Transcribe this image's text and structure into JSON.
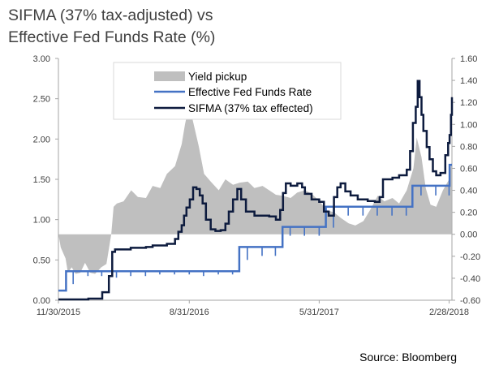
{
  "title_line1": "SIFMA (37% tax-adjusted) vs",
  "title_line2": "Effective Fed Funds Rate (%)",
  "source": "Source: Bloomberg",
  "colors": {
    "yield_pickup": "#bfbfbf",
    "fed_funds": "#4472c4",
    "sifma": "#0d1b3e",
    "axis": "#a6a6a6"
  },
  "chart_data": {
    "type": "line",
    "title": "SIFMA (37% tax-adjusted) vs Effective Fed Funds Rate (%)",
    "x_tick_labels": [
      "11/30/2015",
      "8/31/2016",
      "5/31/2017",
      "2/28/2018"
    ],
    "x_tick_dates": [
      "2015-11-30",
      "2016-08-31",
      "2017-05-31",
      "2018-02-28"
    ],
    "x_range": [
      "2015-11-30",
      "2018-03-06"
    ],
    "left_axis": {
      "ticks": [
        "0.00",
        "0.50",
        "1.00",
        "1.50",
        "2.00",
        "2.50",
        "3.00"
      ],
      "ylim": [
        0,
        3
      ]
    },
    "right_axis": {
      "ticks": [
        "-0.60",
        "-0.40",
        "-0.20",
        "0.00",
        "0.20",
        "0.40",
        "0.60",
        "0.80",
        "1.00",
        "1.20",
        "1.40",
        "1.60"
      ],
      "ylim": [
        -0.6,
        1.6
      ]
    },
    "legend": {
      "entries": [
        "Yield pickup",
        "Effective Fed Funds Rate",
        "SIFMA (37% tax effected)"
      ],
      "placement": "top-center"
    },
    "series": [
      {
        "name": "Yield pickup",
        "kind": "area",
        "axis": "right",
        "points": [
          [
            "2015-11-30",
            0.0
          ],
          [
            "2015-12-05",
            -0.12
          ],
          [
            "2015-12-15",
            -0.22
          ],
          [
            "2015-12-20",
            -0.35
          ],
          [
            "2015-12-28",
            -0.3
          ],
          [
            "2016-01-05",
            -0.36
          ],
          [
            "2016-01-15",
            -0.35
          ],
          [
            "2016-01-25",
            -0.26
          ],
          [
            "2016-02-05",
            -0.35
          ],
          [
            "2016-02-15",
            -0.36
          ],
          [
            "2016-02-28",
            -0.3
          ],
          [
            "2016-03-10",
            -0.27
          ],
          [
            "2016-03-20",
            0.0
          ],
          [
            "2016-03-25",
            0.25
          ],
          [
            "2016-04-01",
            0.28
          ],
          [
            "2016-04-15",
            0.3
          ],
          [
            "2016-05-01",
            0.4
          ],
          [
            "2016-05-15",
            0.34
          ],
          [
            "2016-06-01",
            0.33
          ],
          [
            "2016-06-15",
            0.44
          ],
          [
            "2016-07-01",
            0.42
          ],
          [
            "2016-07-15",
            0.55
          ],
          [
            "2016-08-01",
            0.62
          ],
          [
            "2016-08-15",
            0.82
          ],
          [
            "2016-08-22",
            1.0
          ],
          [
            "2016-08-28",
            1.12
          ],
          [
            "2016-09-05",
            1.08
          ],
          [
            "2016-09-12",
            0.95
          ],
          [
            "2016-09-20",
            0.8
          ],
          [
            "2016-10-01",
            0.55
          ],
          [
            "2016-10-15",
            0.48
          ],
          [
            "2016-11-01",
            0.4
          ],
          [
            "2016-11-15",
            0.5
          ],
          [
            "2016-12-01",
            0.45
          ],
          [
            "2016-12-15",
            0.47
          ],
          [
            "2017-01-01",
            0.48
          ],
          [
            "2017-01-15",
            0.42
          ],
          [
            "2017-02-01",
            0.44
          ],
          [
            "2017-02-15",
            0.4
          ],
          [
            "2017-03-01",
            0.36
          ],
          [
            "2017-03-15",
            0.35
          ],
          [
            "2017-04-01",
            0.33
          ],
          [
            "2017-04-15",
            0.38
          ],
          [
            "2017-05-01",
            0.4
          ],
          [
            "2017-05-15",
            0.37
          ],
          [
            "2017-06-01",
            0.3
          ],
          [
            "2017-06-15",
            0.22
          ],
          [
            "2017-07-01",
            0.2
          ],
          [
            "2017-07-15",
            0.15
          ],
          [
            "2017-08-01",
            0.1
          ],
          [
            "2017-08-15",
            0.08
          ],
          [
            "2017-09-01",
            0.12
          ],
          [
            "2017-09-15",
            0.22
          ],
          [
            "2017-10-01",
            0.35
          ],
          [
            "2017-10-15",
            0.3
          ],
          [
            "2017-11-01",
            0.33
          ],
          [
            "2017-11-15",
            0.28
          ],
          [
            "2017-12-01",
            0.4
          ],
          [
            "2017-12-15",
            0.6
          ],
          [
            "2017-12-22",
            0.88
          ],
          [
            "2018-01-01",
            0.7
          ],
          [
            "2018-01-10",
            0.42
          ],
          [
            "2018-01-20",
            0.27
          ],
          [
            "2018-02-01",
            0.25
          ],
          [
            "2018-02-15",
            0.4
          ],
          [
            "2018-02-28",
            0.5
          ],
          [
            "2018-03-05",
            0.65
          ]
        ]
      },
      {
        "name": "Effective Fed Funds Rate",
        "kind": "step",
        "axis": "left",
        "points": [
          [
            "2015-11-30",
            0.12
          ],
          [
            "2015-12-16",
            0.36
          ],
          [
            "2016-12-14",
            0.66
          ],
          [
            "2017-03-15",
            0.91
          ],
          [
            "2017-06-14",
            1.16
          ],
          [
            "2017-12-13",
            1.42
          ],
          [
            "2018-03-01",
            1.68
          ],
          [
            "2018-03-06",
            1.68
          ]
        ],
        "dips": [
          [
            "2015-12-31",
            0.2
          ],
          [
            "2016-01-31",
            0.3
          ],
          [
            "2016-02-29",
            0.3
          ],
          [
            "2016-03-31",
            0.28
          ],
          [
            "2016-04-30",
            0.3
          ],
          [
            "2016-05-31",
            0.3
          ],
          [
            "2016-06-30",
            0.32
          ],
          [
            "2016-07-31",
            0.32
          ],
          [
            "2016-08-31",
            0.32
          ],
          [
            "2016-09-30",
            0.3
          ],
          [
            "2016-10-31",
            0.32
          ],
          [
            "2016-11-30",
            0.32
          ],
          [
            "2016-12-31",
            0.5
          ],
          [
            "2017-01-31",
            0.55
          ],
          [
            "2017-02-28",
            0.55
          ],
          [
            "2017-03-31",
            0.8
          ],
          [
            "2017-04-30",
            0.8
          ],
          [
            "2017-05-31",
            0.8
          ],
          [
            "2017-06-30",
            0.9
          ],
          [
            "2017-07-31",
            1.05
          ],
          [
            "2017-08-31",
            1.05
          ],
          [
            "2017-09-30",
            1.05
          ],
          [
            "2017-10-31",
            1.05
          ],
          [
            "2017-11-30",
            1.05
          ],
          [
            "2017-12-31",
            1.3
          ],
          [
            "2018-01-31",
            1.3
          ],
          [
            "2018-02-28",
            1.3
          ]
        ]
      },
      {
        "name": "SIFMA (37% tax effected)",
        "kind": "step",
        "axis": "left",
        "points": [
          [
            "2015-11-30",
            0.01
          ],
          [
            "2016-02-01",
            0.02
          ],
          [
            "2016-03-01",
            0.1
          ],
          [
            "2016-03-15",
            0.3
          ],
          [
            "2016-03-22",
            0.6
          ],
          [
            "2016-03-28",
            0.63
          ],
          [
            "2016-04-30",
            0.65
          ],
          [
            "2016-06-01",
            0.66
          ],
          [
            "2016-06-15",
            0.68
          ],
          [
            "2016-07-15",
            0.7
          ],
          [
            "2016-08-01",
            0.76
          ],
          [
            "2016-08-08",
            0.85
          ],
          [
            "2016-08-15",
            0.93
          ],
          [
            "2016-08-20",
            1.05
          ],
          [
            "2016-08-25",
            1.15
          ],
          [
            "2016-09-01",
            1.25
          ],
          [
            "2016-09-08",
            1.4
          ],
          [
            "2016-09-15",
            1.38
          ],
          [
            "2016-09-22",
            1.3
          ],
          [
            "2016-09-28",
            1.2
          ],
          [
            "2016-10-05",
            1.0
          ],
          [
            "2016-10-15",
            0.88
          ],
          [
            "2016-10-25",
            0.86
          ],
          [
            "2016-11-05",
            0.87
          ],
          [
            "2016-11-15",
            0.95
          ],
          [
            "2016-11-22",
            1.1
          ],
          [
            "2016-12-01",
            1.25
          ],
          [
            "2016-12-10",
            1.38
          ],
          [
            "2016-12-18",
            1.25
          ],
          [
            "2016-12-28",
            1.1
          ],
          [
            "2017-01-15",
            1.05
          ],
          [
            "2017-02-01",
            1.05
          ],
          [
            "2017-02-15",
            1.04
          ],
          [
            "2017-03-01",
            1.0
          ],
          [
            "2017-03-10",
            1.12
          ],
          [
            "2017-03-16",
            1.33
          ],
          [
            "2017-03-22",
            1.45
          ],
          [
            "2017-04-01",
            1.42
          ],
          [
            "2017-04-15",
            1.45
          ],
          [
            "2017-04-25",
            1.4
          ],
          [
            "2017-05-01",
            1.32
          ],
          [
            "2017-05-15",
            1.25
          ],
          [
            "2017-05-31",
            1.22
          ],
          [
            "2017-06-10",
            1.1
          ],
          [
            "2017-06-20",
            1.05
          ],
          [
            "2017-07-01",
            1.28
          ],
          [
            "2017-07-08",
            1.4
          ],
          [
            "2017-07-15",
            1.45
          ],
          [
            "2017-07-25",
            1.35
          ],
          [
            "2017-08-05",
            1.3
          ],
          [
            "2017-08-20",
            1.25
          ],
          [
            "2017-09-10",
            1.23
          ],
          [
            "2017-09-25",
            1.22
          ],
          [
            "2017-10-05",
            1.28
          ],
          [
            "2017-10-12",
            1.5
          ],
          [
            "2017-10-20",
            1.5
          ],
          [
            "2017-11-01",
            1.52
          ],
          [
            "2017-11-15",
            1.55
          ],
          [
            "2017-12-01",
            1.62
          ],
          [
            "2017-12-08",
            1.85
          ],
          [
            "2017-12-14",
            2.2
          ],
          [
            "2017-12-20",
            2.4
          ],
          [
            "2017-12-24",
            2.72
          ],
          [
            "2017-12-28",
            2.52
          ],
          [
            "2018-01-01",
            2.3
          ],
          [
            "2018-01-05",
            2.1
          ],
          [
            "2018-01-12",
            1.9
          ],
          [
            "2018-01-18",
            1.75
          ],
          [
            "2018-01-25",
            1.6
          ],
          [
            "2018-02-01",
            1.55
          ],
          [
            "2018-02-10",
            1.58
          ],
          [
            "2018-02-20",
            1.8
          ],
          [
            "2018-02-26",
            1.95
          ],
          [
            "2018-03-01",
            2.05
          ],
          [
            "2018-03-04",
            2.3
          ],
          [
            "2018-03-06",
            2.52
          ]
        ]
      }
    ]
  }
}
